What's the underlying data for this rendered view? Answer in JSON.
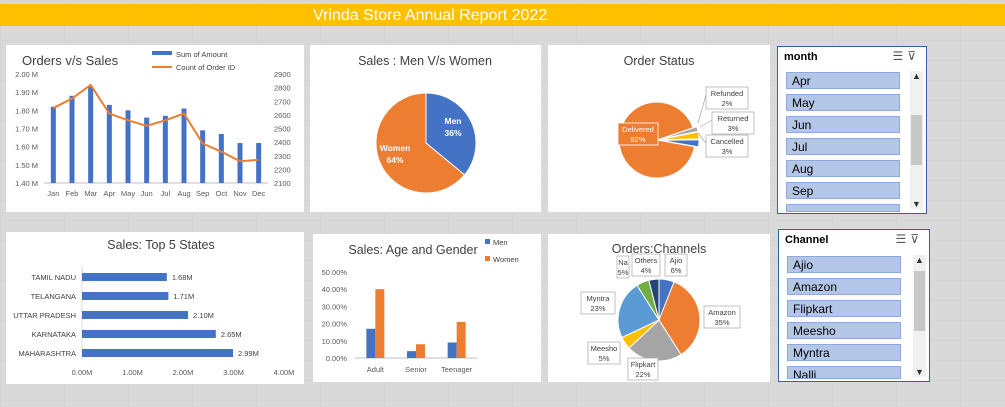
{
  "banner": {
    "title": "Vrinda Store Annual Report 2022",
    "color": "#ffc000"
  },
  "colors": {
    "blue": "#4472c4",
    "orange": "#ed7d31",
    "gray": "#a5a5a5",
    "yellow": "#ffc000",
    "lightblue": "#5b9bd5",
    "green": "#70ad47"
  },
  "chart_data": [
    {
      "id": "orders-vs-sales",
      "type": "bar",
      "title": "Orders v/s Sales",
      "categories": [
        "Jan",
        "Feb",
        "Mar",
        "Apr",
        "May",
        "Jun",
        "Jul",
        "Aug",
        "Sep",
        "Oct",
        "Nov",
        "Dec"
      ],
      "series": [
        {
          "name": "Sum of Amount",
          "type": "bar",
          "axis": "left",
          "values": [
            1.82,
            1.88,
            1.93,
            1.83,
            1.8,
            1.76,
            1.77,
            1.81,
            1.69,
            1.67,
            1.62,
            1.62
          ]
        },
        {
          "name": "Count of Order ID",
          "type": "line",
          "axis": "right",
          "values": [
            2650,
            2720,
            2820,
            2610,
            2560,
            2520,
            2560,
            2610,
            2390,
            2330,
            2260,
            2270
          ]
        }
      ],
      "y_left": {
        "ylim": [
          1.4,
          2.0
        ],
        "ticks": [
          "1.40 M",
          "1.50 M",
          "1.60 M",
          "1.70 M",
          "1.80 M",
          "1.90 M",
          "2.00 M"
        ]
      },
      "y_right": {
        "ylim": [
          2100,
          2900
        ],
        "ticks": [
          "2100",
          "2200",
          "2300",
          "2400",
          "2500",
          "2600",
          "2700",
          "2800",
          "2900"
        ]
      },
      "legend": "top-right"
    },
    {
      "id": "sales-men-women",
      "type": "pie",
      "title": "Sales : Men V/s Women",
      "slices": [
        {
          "label": "Men",
          "pct_label": "36%",
          "value": 36,
          "color": "#4472c4"
        },
        {
          "label": "Women",
          "pct_label": "64%",
          "value": 64,
          "color": "#ed7d31"
        }
      ]
    },
    {
      "id": "order-status",
      "type": "pie",
      "title": "Order Status",
      "slices": [
        {
          "label": "Delivered",
          "pct_label": "92%",
          "value": 92,
          "color": "#ed7d31"
        },
        {
          "label": "Refunded",
          "pct_label": "2%",
          "value": 2,
          "color": "#a5a5a5"
        },
        {
          "label": "Returned",
          "pct_label": "3%",
          "value": 3,
          "color": "#ffc000"
        },
        {
          "label": "Cancelled",
          "pct_label": "3%",
          "value": 3,
          "color": "#4472c4"
        }
      ]
    },
    {
      "id": "top-5-states",
      "type": "bar",
      "orientation": "horizontal",
      "title": "Sales: Top 5 States",
      "categories": [
        "TAMIL NADU",
        "TELANGANA",
        "UTTAR PRADESH",
        "KARNATAKA",
        "MAHARASHTRA"
      ],
      "values": [
        1.68,
        1.71,
        2.1,
        2.65,
        2.99
      ],
      "value_labels": [
        "1.68M",
        "1.71M",
        "2.10M",
        "2.65M",
        "2.99M"
      ],
      "xlim": [
        0,
        4
      ],
      "x_ticks": [
        "0.00M",
        "1.00M",
        "2.00M",
        "3.00M",
        "4.00M"
      ]
    },
    {
      "id": "age-gender",
      "type": "bar",
      "title": "Sales: Age and Gender",
      "categories": [
        "Adult",
        "Senior",
        "Teenager"
      ],
      "series": [
        {
          "name": "Men",
          "values": [
            17,
            4,
            9
          ],
          "color": "#4472c4"
        },
        {
          "name": "Women",
          "values": [
            40,
            8,
            21
          ],
          "color": "#ed7d31"
        }
      ],
      "ylim": [
        0,
        50
      ],
      "y_ticks": [
        "0.00%",
        "10.00%",
        "20.00%",
        "30.00%",
        "40.00%",
        "50.00%"
      ],
      "legend": "top-right"
    },
    {
      "id": "orders-channels",
      "type": "pie",
      "title": "Orders:Channels",
      "slices": [
        {
          "label": "Ajio",
          "pct_label": "6%",
          "value": 6,
          "color": "#4472c4"
        },
        {
          "label": "Amazon",
          "pct_label": "35%",
          "value": 35,
          "color": "#ed7d31"
        },
        {
          "label": "Flipkart",
          "pct_label": "22%",
          "value": 22,
          "color": "#a5a5a5"
        },
        {
          "label": "Meesho",
          "pct_label": "5%",
          "value": 5,
          "color": "#ffc000"
        },
        {
          "label": "Myntra",
          "pct_label": "23%",
          "value": 23,
          "color": "#5b9bd5"
        },
        {
          "label": "Na",
          "pct_label": "5%",
          "value": 5,
          "color": "#70ad47"
        },
        {
          "label": "Others",
          "pct_label": "4%",
          "value": 4,
          "color": "#264478"
        }
      ]
    }
  ],
  "slicers": {
    "month": {
      "header": "month",
      "items": [
        "Apr",
        "May",
        "Jun",
        "Jul",
        "Aug",
        "Sep"
      ]
    },
    "channel": {
      "header": "Channel",
      "items": [
        "Ajio",
        "Amazon",
        "Flipkart",
        "Meesho",
        "Myntra",
        "Nalli"
      ]
    }
  }
}
